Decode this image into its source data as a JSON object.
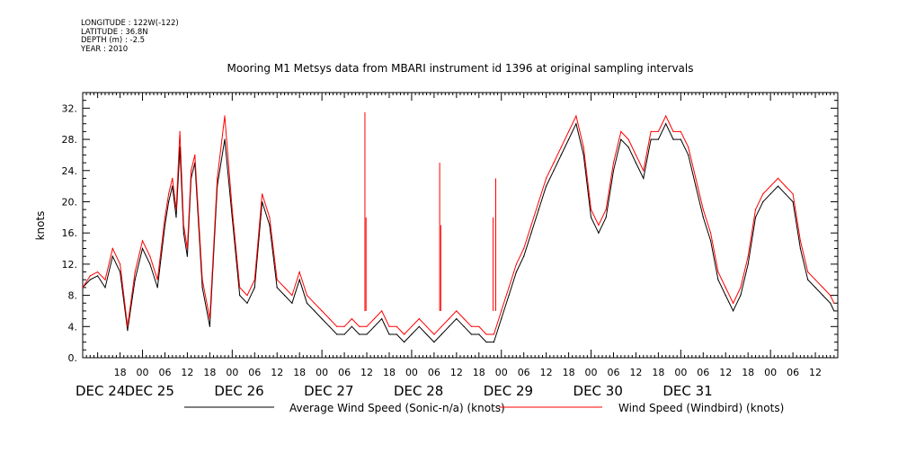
{
  "header": {
    "meta_lines": [
      "LONGITUDE : 122W(-122)",
      "LATITUDE : 36.8N",
      "DEPTH (m) : -2.5",
      "YEAR : 2010"
    ]
  },
  "chart_data": {
    "type": "line",
    "title": "Mooring M1 Metsys data from MBARI instrument id 1396 at original sampling intervals",
    "xlabel": "",
    "ylabel": "knots",
    "ylim": [
      0,
      34
    ],
    "yticks": [
      0,
      4,
      8,
      12,
      16,
      20,
      24,
      28,
      32
    ],
    "y_tick_labels": [
      "0.",
      "4.",
      "8.",
      "12.",
      "16.",
      "20.",
      "24.",
      "28.",
      "32."
    ],
    "x_hour_range": [
      -16,
      186
    ],
    "x_hour_label_hours": [
      -6,
      0,
      6,
      12,
      18,
      24,
      30,
      36,
      42,
      48,
      54,
      60,
      66,
      72,
      78,
      84,
      90,
      96,
      102,
      108,
      114,
      120,
      126,
      132,
      138,
      144,
      150,
      156,
      162,
      168,
      174,
      180
    ],
    "x_hour_labels": [
      "18",
      "00",
      "06",
      "12",
      "18",
      "00",
      "06",
      "12",
      "18",
      "00",
      "06",
      "12",
      "18",
      "00",
      "06",
      "12",
      "18",
      "00",
      "06",
      "12",
      "18",
      "00",
      "06",
      "12",
      "18",
      "00",
      "06",
      "12",
      "18",
      "00",
      "06",
      "12"
    ],
    "x_day_labels": [
      {
        "label": "DEC 24",
        "hour": -16
      },
      {
        "label": "DEC 25",
        "hour": 0
      },
      {
        "label": "DEC 26",
        "hour": 24
      },
      {
        "label": "DEC 27",
        "hour": 48
      },
      {
        "label": "DEC 28",
        "hour": 72
      },
      {
        "label": "DEC 29",
        "hour": 96
      },
      {
        "label": "DEC 30",
        "hour": 120
      },
      {
        "label": "DEC 31",
        "hour": 144
      }
    ],
    "grid": false,
    "legend_position": "bottom",
    "series": [
      {
        "name": "Average Wind Speed (Sonic-n/a) (knots)",
        "color": "#000000",
        "x": [
          -16,
          -14,
          -12,
          -10,
          -8,
          -6,
          -4,
          -2,
          0,
          2,
          4,
          6,
          7,
          8,
          9,
          10,
          11,
          12,
          13,
          14,
          16,
          18,
          20,
          22,
          24,
          26,
          28,
          30,
          32,
          34,
          36,
          38,
          40,
          42,
          44,
          46,
          48,
          50,
          52,
          54,
          56,
          58,
          60,
          62,
          64,
          66,
          68,
          70,
          72,
          74,
          76,
          78,
          80,
          82,
          84,
          86,
          88,
          90,
          92,
          94,
          96,
          98,
          100,
          102,
          104,
          106,
          108,
          110,
          112,
          114,
          116,
          118,
          120,
          122,
          124,
          126,
          128,
          130,
          132,
          134,
          136,
          138,
          140,
          142,
          144,
          146,
          148,
          150,
          152,
          154,
          156,
          158,
          160,
          162,
          164,
          166,
          168,
          170,
          172,
          174,
          176,
          178,
          180,
          182,
          184,
          185
        ],
        "y": [
          9,
          10,
          10.5,
          9,
          13,
          11,
          3.5,
          10,
          14,
          12,
          9,
          17,
          20,
          22,
          18,
          27,
          16,
          13,
          23,
          25,
          9,
          4,
          22,
          28,
          18,
          8,
          7,
          9,
          20,
          17,
          9,
          8,
          7,
          10,
          7,
          6,
          5,
          4,
          3,
          3,
          4,
          3,
          3,
          4,
          5,
          3,
          3,
          2,
          3,
          4,
          3,
          2,
          3,
          4,
          5,
          4,
          3,
          3,
          2,
          2,
          5,
          8,
          11,
          13,
          16,
          19,
          22,
          24,
          26,
          28,
          30,
          26,
          18,
          16,
          18,
          24,
          28,
          27,
          25,
          23,
          28,
          28,
          30,
          28,
          28,
          26,
          22,
          18,
          15,
          10,
          8,
          6,
          8,
          12,
          18,
          20,
          21,
          22,
          21,
          20,
          14,
          10,
          9,
          8,
          7,
          6
        ]
      },
      {
        "name": "Wind Speed (Windbird) (knots)",
        "color": "#ff0000",
        "x": [
          -16,
          -14,
          -12,
          -10,
          -8,
          -6,
          -4,
          -2,
          0,
          2,
          4,
          6,
          7,
          8,
          9,
          10,
          11,
          12,
          13,
          14,
          16,
          18,
          20,
          22,
          24,
          26,
          28,
          30,
          32,
          34,
          36,
          38,
          40,
          42,
          44,
          46,
          48,
          50,
          52,
          54,
          56,
          58,
          60,
          62,
          64,
          66,
          68,
          70,
          72,
          74,
          76,
          78,
          80,
          82,
          84,
          86,
          88,
          90,
          92,
          94,
          96,
          98,
          100,
          102,
          104,
          106,
          108,
          110,
          112,
          114,
          116,
          118,
          120,
          122,
          124,
          126,
          128,
          130,
          132,
          134,
          136,
          138,
          140,
          142,
          144,
          146,
          148,
          150,
          152,
          154,
          156,
          158,
          160,
          162,
          164,
          166,
          168,
          170,
          172,
          174,
          176,
          178,
          180,
          182,
          184,
          185
        ],
        "y": [
          9,
          10.5,
          11,
          10,
          14,
          12,
          4,
          11,
          15,
          13,
          10,
          18,
          21,
          23,
          19,
          29,
          17,
          14,
          24,
          26,
          10,
          5,
          23,
          31,
          19,
          9,
          8,
          10,
          21,
          18,
          10,
          9,
          8,
          11,
          8,
          7,
          6,
          5,
          4,
          4,
          5,
          4,
          4,
          5,
          6,
          4,
          4,
          3,
          4,
          5,
          4,
          3,
          4,
          5,
          6,
          5,
          4,
          4,
          3,
          3,
          6,
          9,
          12,
          14,
          17,
          20,
          23,
          25,
          27,
          29,
          31,
          27,
          19,
          17,
          19,
          25,
          29,
          28,
          26,
          24,
          29,
          29,
          31,
          29,
          29,
          27,
          23,
          19,
          16,
          11,
          9,
          7,
          9,
          13,
          19,
          21,
          22,
          23,
          22,
          21,
          15,
          11,
          10,
          9,
          8,
          7
        ]
      }
    ],
    "spikes": [
      {
        "series": 1,
        "x": 59.5,
        "y": 31.5
      },
      {
        "series": 1,
        "x": 59.8,
        "y": 18
      },
      {
        "series": 1,
        "x": 79.5,
        "y": 25
      },
      {
        "series": 1,
        "x": 79.8,
        "y": 17
      },
      {
        "series": 1,
        "x": 94.5,
        "y": 23
      },
      {
        "series": 1,
        "x": 93.8,
        "y": 18
      }
    ]
  }
}
